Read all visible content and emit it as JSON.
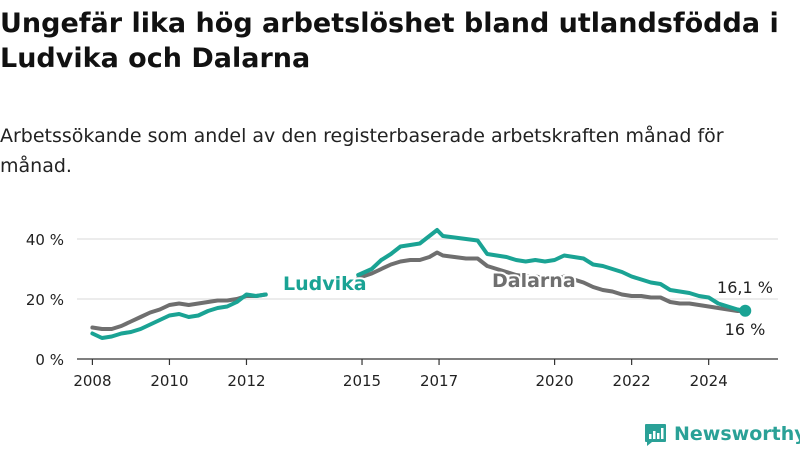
{
  "title": "Ungefär lika hög arbetslöshet bland utlandsfödda i Ludvika och Dalarna",
  "subtitle": "Arbetssökande som andel av den registerbaserade arbetskraften månad för månad.",
  "logo": {
    "text": "Newsworthy",
    "icon": "bar-chart-logo-icon"
  },
  "colors": {
    "ludvika": "#1aa394",
    "dalarna": "#6f6f6f",
    "grid": "#d9d9d9",
    "axis": "#333333",
    "logo": "#2aa197"
  },
  "chart_data": {
    "type": "line",
    "title": "Ungefär lika hög arbetslöshet bland utlandsfödda i Ludvika och Dalarna",
    "subtitle": "Arbetssökande som andel av den registerbaserade arbetskraften månad för månad.",
    "xlabel": "",
    "ylabel": "",
    "ylim": [
      0,
      45
    ],
    "xlim": [
      2007.6,
      2025.8
    ],
    "grid": true,
    "legend": "inline labels",
    "y_ticks": [
      0,
      20,
      40
    ],
    "y_tick_labels": [
      "0 %",
      "20 %",
      "40 %"
    ],
    "x_ticks": [
      2008,
      2010,
      2012,
      2015,
      2017,
      2020,
      2022,
      2024
    ],
    "x_tick_labels": [
      "2008",
      "2010",
      "2012",
      "2015",
      "2017",
      "2020",
      "2022",
      "2024"
    ],
    "series": [
      {
        "name": "Ludvika",
        "color": "#1aa394",
        "segments": [
          {
            "x": [
              2008.0,
              2008.25,
              2008.5,
              2008.75,
              2009.0,
              2009.25,
              2009.5,
              2009.75,
              2010.0,
              2010.25,
              2010.5,
              2010.75,
              2011.0,
              2011.25,
              2011.5,
              2011.75,
              2012.0,
              2012.25,
              2012.5
            ],
            "y": [
              8.5,
              7.0,
              7.5,
              8.5,
              9.0,
              10.0,
              11.5,
              13.0,
              14.5,
              15.0,
              14.0,
              14.5,
              16.0,
              17.0,
              17.5,
              19.0,
              21.5,
              21.0,
              21.5
            ]
          },
          {
            "x": [
              2014.9,
              2015.25,
              2015.5,
              2015.75,
              2016.0,
              2016.25,
              2016.5,
              2016.75,
              2016.95,
              2017.1,
              2017.4,
              2017.7,
              2018.0,
              2018.25,
              2018.5,
              2018.75,
              2019.0,
              2019.25,
              2019.5,
              2019.75,
              2020.0,
              2020.25,
              2020.5,
              2020.75,
              2021.0,
              2021.25,
              2021.5,
              2021.75,
              2022.0,
              2022.25,
              2022.5,
              2022.75,
              2023.0,
              2023.25,
              2023.5,
              2023.75,
              2024.0,
              2024.25,
              2024.5,
              2024.75,
              2024.95
            ],
            "y": [
              28.0,
              30.0,
              33.0,
              35.0,
              37.5,
              38.0,
              38.5,
              41.0,
              43.0,
              41.0,
              40.5,
              40.0,
              39.5,
              35.0,
              34.5,
              34.0,
              33.0,
              32.5,
              33.0,
              32.5,
              33.0,
              34.5,
              34.0,
              33.5,
              31.5,
              31.0,
              30.0,
              29.0,
              27.5,
              26.5,
              25.5,
              25.0,
              23.0,
              22.5,
              22.0,
              21.0,
              20.5,
              18.5,
              17.5,
              16.5,
              16.1
            ]
          }
        ]
      },
      {
        "name": "Dalarna",
        "color": "#6f6f6f",
        "segments": [
          {
            "x": [
              2008.0,
              2008.25,
              2008.5,
              2008.75,
              2009.0,
              2009.25,
              2009.5,
              2009.75,
              2010.0,
              2010.25,
              2010.5,
              2010.75,
              2011.0,
              2011.25,
              2011.5,
              2011.75,
              2012.0,
              2012.25,
              2012.5
            ],
            "y": [
              10.5,
              10.0,
              10.0,
              11.0,
              12.5,
              14.0,
              15.5,
              16.5,
              18.0,
              18.5,
              18.0,
              18.5,
              19.0,
              19.5,
              19.5,
              20.0,
              21.0,
              21.0,
              21.5
            ]
          },
          {
            "x": [
              2014.9,
              2015.25,
              2015.5,
              2015.75,
              2016.0,
              2016.25,
              2016.5,
              2016.75,
              2016.95,
              2017.1,
              2017.4,
              2017.7,
              2018.0,
              2018.25,
              2018.5,
              2018.75,
              2019.0,
              2019.25,
              2019.5,
              2019.75,
              2020.0,
              2020.25,
              2020.5,
              2020.75,
              2021.0,
              2021.25,
              2021.5,
              2021.75,
              2022.0,
              2022.25,
              2022.5,
              2022.75,
              2023.0,
              2023.25,
              2023.5,
              2023.75,
              2024.0,
              2024.25,
              2024.5,
              2024.75,
              2024.95
            ],
            "y": [
              27.0,
              28.5,
              30.0,
              31.5,
              32.5,
              33.0,
              33.0,
              34.0,
              35.5,
              34.5,
              34.0,
              33.5,
              33.5,
              31.0,
              30.0,
              29.0,
              28.0,
              27.5,
              27.5,
              27.0,
              26.5,
              27.5,
              26.5,
              25.5,
              24.0,
              23.0,
              22.5,
              21.5,
              21.0,
              21.0,
              20.5,
              20.5,
              19.0,
              18.5,
              18.5,
              18.0,
              17.5,
              17.0,
              16.5,
              16.0,
              16.0
            ]
          }
        ]
      }
    ],
    "annotations": [
      {
        "text": "16,1 %",
        "target": "Ludvika last value"
      },
      {
        "text": "16 %",
        "target": "Dalarna last value"
      }
    ]
  }
}
